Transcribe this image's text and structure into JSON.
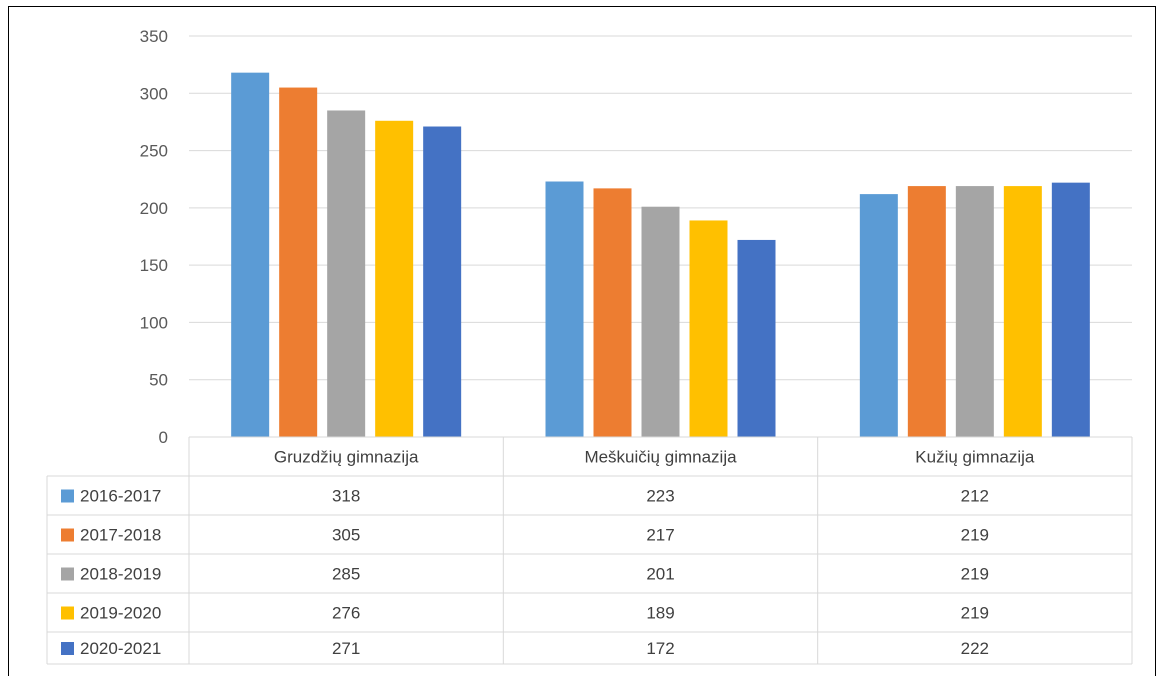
{
  "chart_data": {
    "type": "bar",
    "categories": [
      "Gruzdžių gimnazija",
      "Meškuičių gimnazija",
      "Kužių gimnazija"
    ],
    "series": [
      {
        "name": "2016-2017",
        "values": [
          318,
          223,
          212
        ],
        "color": "#5B9BD5"
      },
      {
        "name": "2017-2018",
        "values": [
          305,
          217,
          219
        ],
        "color": "#ED7D31"
      },
      {
        "name": "2018-2019",
        "values": [
          285,
          201,
          219
        ],
        "color": "#A5A5A5"
      },
      {
        "name": "2019-2020",
        "values": [
          276,
          189,
          219
        ],
        "color": "#FFC000"
      },
      {
        "name": "2020-2021",
        "values": [
          271,
          172,
          222
        ],
        "color": "#4472C4"
      }
    ],
    "ylim": [
      0,
      350
    ],
    "yticks": [
      0,
      50,
      100,
      150,
      200,
      250,
      300,
      350
    ],
    "grid": true,
    "legend": "data-table"
  }
}
